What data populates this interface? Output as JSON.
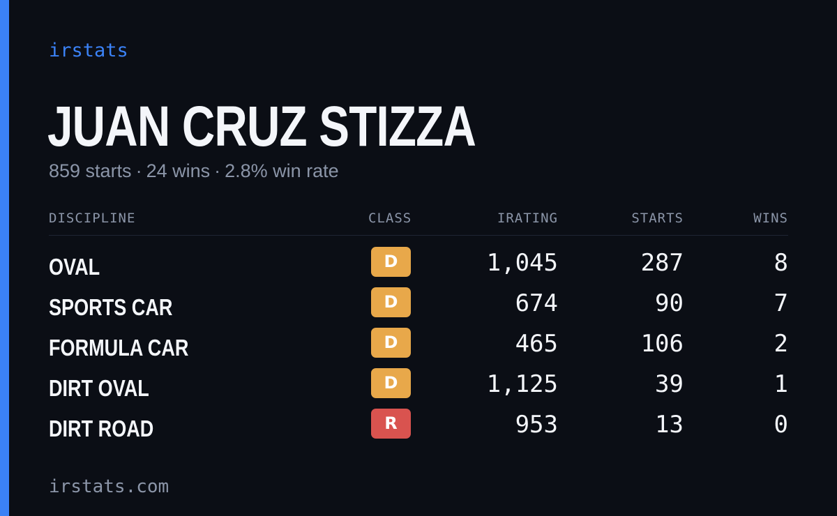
{
  "brand": "irstats",
  "player": {
    "name": "JUAN CRUZ STIZZA",
    "starts_text": "859 starts",
    "separator": "·",
    "wins_text": "24 wins",
    "win_rate_text": "2.8% win rate"
  },
  "table": {
    "headers": {
      "discipline": "DISCIPLINE",
      "class": "CLASS",
      "irating": "IRATING",
      "starts": "STARTS",
      "wins": "WINS"
    },
    "rows": [
      {
        "discipline": "OVAL",
        "class": "D",
        "class_color": "#e8a84a",
        "irating": "1,045",
        "starts": "287",
        "wins": "8"
      },
      {
        "discipline": "SPORTS CAR",
        "class": "D",
        "class_color": "#e8a84a",
        "irating": "674",
        "starts": "90",
        "wins": "7"
      },
      {
        "discipline": "FORMULA CAR",
        "class": "D",
        "class_color": "#e8a84a",
        "irating": "465",
        "starts": "106",
        "wins": "2"
      },
      {
        "discipline": "DIRT OVAL",
        "class": "D",
        "class_color": "#e8a84a",
        "irating": "1,125",
        "starts": "39",
        "wins": "1"
      },
      {
        "discipline": "DIRT ROAD",
        "class": "R",
        "class_color": "#d9534f",
        "irating": "953",
        "starts": "13",
        "wins": "0"
      }
    ]
  },
  "footer": "irstats.com",
  "colors": {
    "background": "#0b0e15",
    "accent": "#3b82f6",
    "text_primary": "#f4f6fa",
    "text_muted": "#8b95a8"
  }
}
